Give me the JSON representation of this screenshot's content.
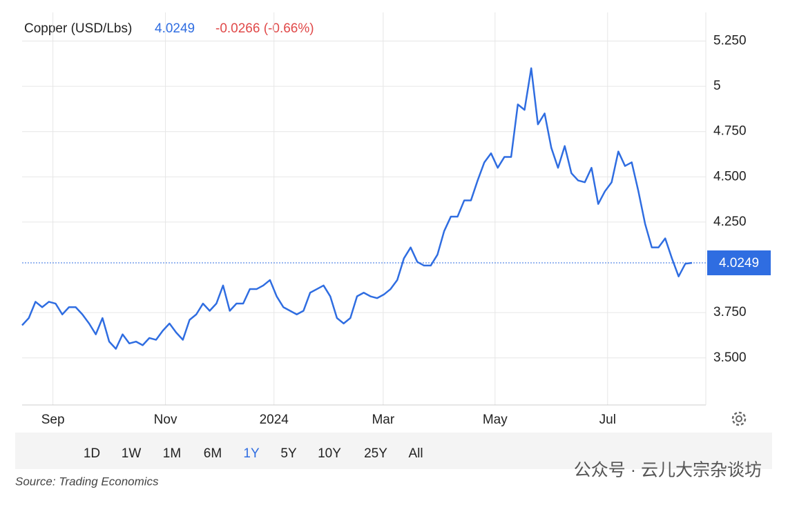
{
  "chart_data": {
    "type": "line",
    "title": "Copper (USD/Lbs)",
    "last_value": 4.0249,
    "change": "-0.0266 (-0.66%)",
    "source": "Source: Trading Economics",
    "watermark": "公众号 · 云儿大宗杂谈坊",
    "ranges": [
      "1D",
      "1W",
      "1M",
      "6M",
      "1Y",
      "5Y",
      "10Y",
      "25Y",
      "All"
    ],
    "selected_range": "1Y",
    "color": "#2f6de1",
    "xlim": [
      0,
      100
    ],
    "xticks": [
      {
        "value": 4.6,
        "label": "Sep"
      },
      {
        "value": 21.4,
        "label": "Nov"
      },
      {
        "value": 37.6,
        "label": "2024"
      },
      {
        "value": 53.9,
        "label": "Mar"
      },
      {
        "value": 70.6,
        "label": "May"
      },
      {
        "value": 87.4,
        "label": "Jul"
      }
    ],
    "ylim": [
      3.24,
      5.37
    ],
    "yticks": [
      {
        "value": 3.5,
        "label": "3.500"
      },
      {
        "value": 3.75,
        "label": "3.750"
      },
      {
        "value": 4.25,
        "label": "4.250"
      },
      {
        "value": 4.5,
        "label": "4.500"
      },
      {
        "value": 4.75,
        "label": "4.750"
      },
      5,
      {
        "value": 5.25,
        "label": "5.250"
      }
    ],
    "grid": true,
    "values": [
      3.68,
      3.72,
      3.81,
      3.78,
      3.81,
      3.8,
      3.74,
      3.78,
      3.78,
      3.74,
      3.69,
      3.63,
      3.72,
      3.59,
      3.55,
      3.63,
      3.58,
      3.59,
      3.57,
      3.61,
      3.6,
      3.65,
      3.69,
      3.64,
      3.6,
      3.71,
      3.74,
      3.8,
      3.76,
      3.8,
      3.9,
      3.76,
      3.8,
      3.8,
      3.88,
      3.88,
      3.9,
      3.93,
      3.84,
      3.78,
      3.76,
      3.74,
      3.76,
      3.86,
      3.88,
      3.9,
      3.84,
      3.72,
      3.69,
      3.72,
      3.84,
      3.86,
      3.84,
      3.83,
      3.85,
      3.88,
      3.93,
      4.05,
      4.11,
      4.03,
      4.01,
      4.01,
      4.07,
      4.2,
      4.28,
      4.28,
      4.37,
      4.37,
      4.48,
      4.58,
      4.63,
      4.55,
      4.61,
      4.61,
      4.9,
      4.87,
      5.1,
      4.79,
      4.85,
      4.66,
      4.55,
      4.67,
      4.52,
      4.48,
      4.47,
      4.55,
      4.35,
      4.42,
      4.47,
      4.64,
      4.56,
      4.58,
      4.42,
      4.24,
      4.11,
      4.11,
      4.16,
      4.05,
      3.95,
      4.02,
      4.0249
    ]
  }
}
